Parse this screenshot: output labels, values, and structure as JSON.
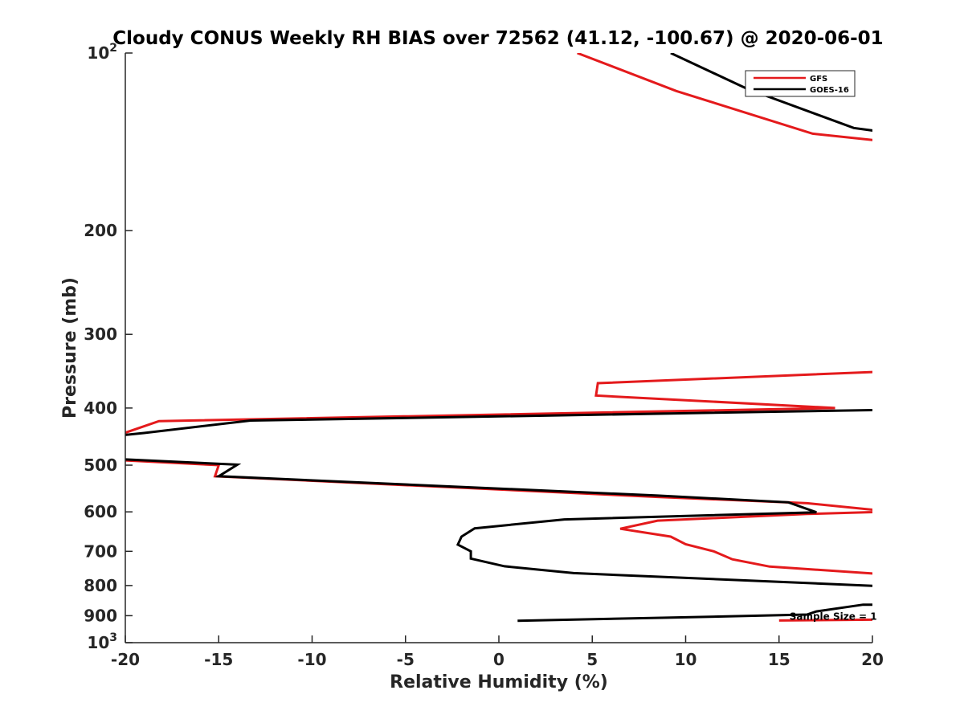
{
  "chart_data": {
    "type": "line",
    "title": "Cloudy CONUS Weekly RH BIAS over 72562 (41.12, -100.67) @ 2020-06-01",
    "xlabel": "Relative Humidity (%)",
    "ylabel": "Pressure (mb)",
    "xlim": [
      -20,
      20
    ],
    "ylim": [
      100,
      1000
    ],
    "yscale": "log",
    "y_reversed": true,
    "grid": false,
    "legend_position": "top-right",
    "xticks": [
      {
        "value": -20,
        "label": "-20"
      },
      {
        "value": -15,
        "label": "-15"
      },
      {
        "value": -10,
        "label": "-10"
      },
      {
        "value": -5,
        "label": "-5"
      },
      {
        "value": 0,
        "label": "0"
      },
      {
        "value": 5,
        "label": "5"
      },
      {
        "value": 10,
        "label": "10"
      },
      {
        "value": 15,
        "label": "15"
      },
      {
        "value": 20,
        "label": "20"
      }
    ],
    "yticks": [
      {
        "value": 100,
        "base": "10",
        "exp": "2"
      },
      {
        "value": 200,
        "label": "200"
      },
      {
        "value": 300,
        "label": "300"
      },
      {
        "value": 400,
        "label": "400"
      },
      {
        "value": 500,
        "label": "500"
      },
      {
        "value": 600,
        "label": "600"
      },
      {
        "value": 700,
        "label": "700"
      },
      {
        "value": 800,
        "label": "800"
      },
      {
        "value": 900,
        "label": "900"
      },
      {
        "value": 1000,
        "base": "10",
        "exp": "3"
      }
    ],
    "series": [
      {
        "name": "GFS",
        "color": "#e41a1c",
        "segments": [
          [
            [
              4.2,
              100
            ],
            [
              9.5,
              116
            ],
            [
              16.8,
              137
            ],
            [
              20.5,
              141
            ]
          ],
          [
            [
              20.5,
              347
            ],
            [
              5.3,
              363
            ],
            [
              5.2,
              381
            ],
            [
              18.0,
              400
            ],
            [
              -18.2,
              421
            ],
            [
              -20.5,
              446
            ]
          ],
          [
            [
              -20.5,
              490
            ],
            [
              -15.0,
              500
            ],
            [
              -15.2,
              522
            ],
            [
              8.5,
              566
            ],
            [
              16.5,
              580
            ],
            [
              20.5,
              597
            ],
            [
              20.5,
              600
            ],
            [
              16.5,
              605
            ],
            [
              8.5,
              621
            ],
            [
              6.5,
              641
            ],
            [
              9.2,
              661
            ],
            [
              10.0,
              681
            ],
            [
              11.5,
              700
            ],
            [
              12.5,
              722
            ],
            [
              14.5,
              743
            ],
            [
              20.5,
              765
            ]
          ],
          [
            [
              15.0,
              917
            ],
            [
              20.5,
              914
            ]
          ]
        ]
      },
      {
        "name": "GOES-16",
        "color": "#000000",
        "segments": [
          [
            [
              9.2,
              100
            ],
            [
              13.3,
              115
            ],
            [
              19.0,
              134
            ],
            [
              20.5,
              136
            ]
          ],
          [
            [
              20.5,
              403
            ],
            [
              -13.3,
              420
            ],
            [
              -19.0,
              441
            ],
            [
              -20.5,
              446
            ]
          ],
          [
            [
              -20.5,
              488
            ],
            [
              -14.0,
              499
            ],
            [
              -15.0,
              522
            ],
            [
              8.5,
              563
            ],
            [
              15.5,
              578
            ],
            [
              17.0,
              601
            ],
            [
              3.5,
              618
            ],
            [
              -1.3,
              640
            ],
            [
              -2.0,
              661
            ],
            [
              -2.2,
              682
            ],
            [
              -1.5,
              700
            ],
            [
              -1.5,
              720
            ],
            [
              0.3,
              742
            ],
            [
              4.0,
              762
            ],
            [
              20.5,
              802
            ]
          ],
          [
            [
              20.5,
              862
            ],
            [
              19.5,
              862
            ],
            [
              17.0,
              885
            ],
            [
              16.5,
              896
            ],
            [
              9.0,
              907
            ],
            [
              1.0,
              918
            ]
          ]
        ]
      }
    ],
    "annotations": [
      {
        "text": "Sample Size = 1",
        "x": 17.9,
        "y": 900
      }
    ]
  }
}
